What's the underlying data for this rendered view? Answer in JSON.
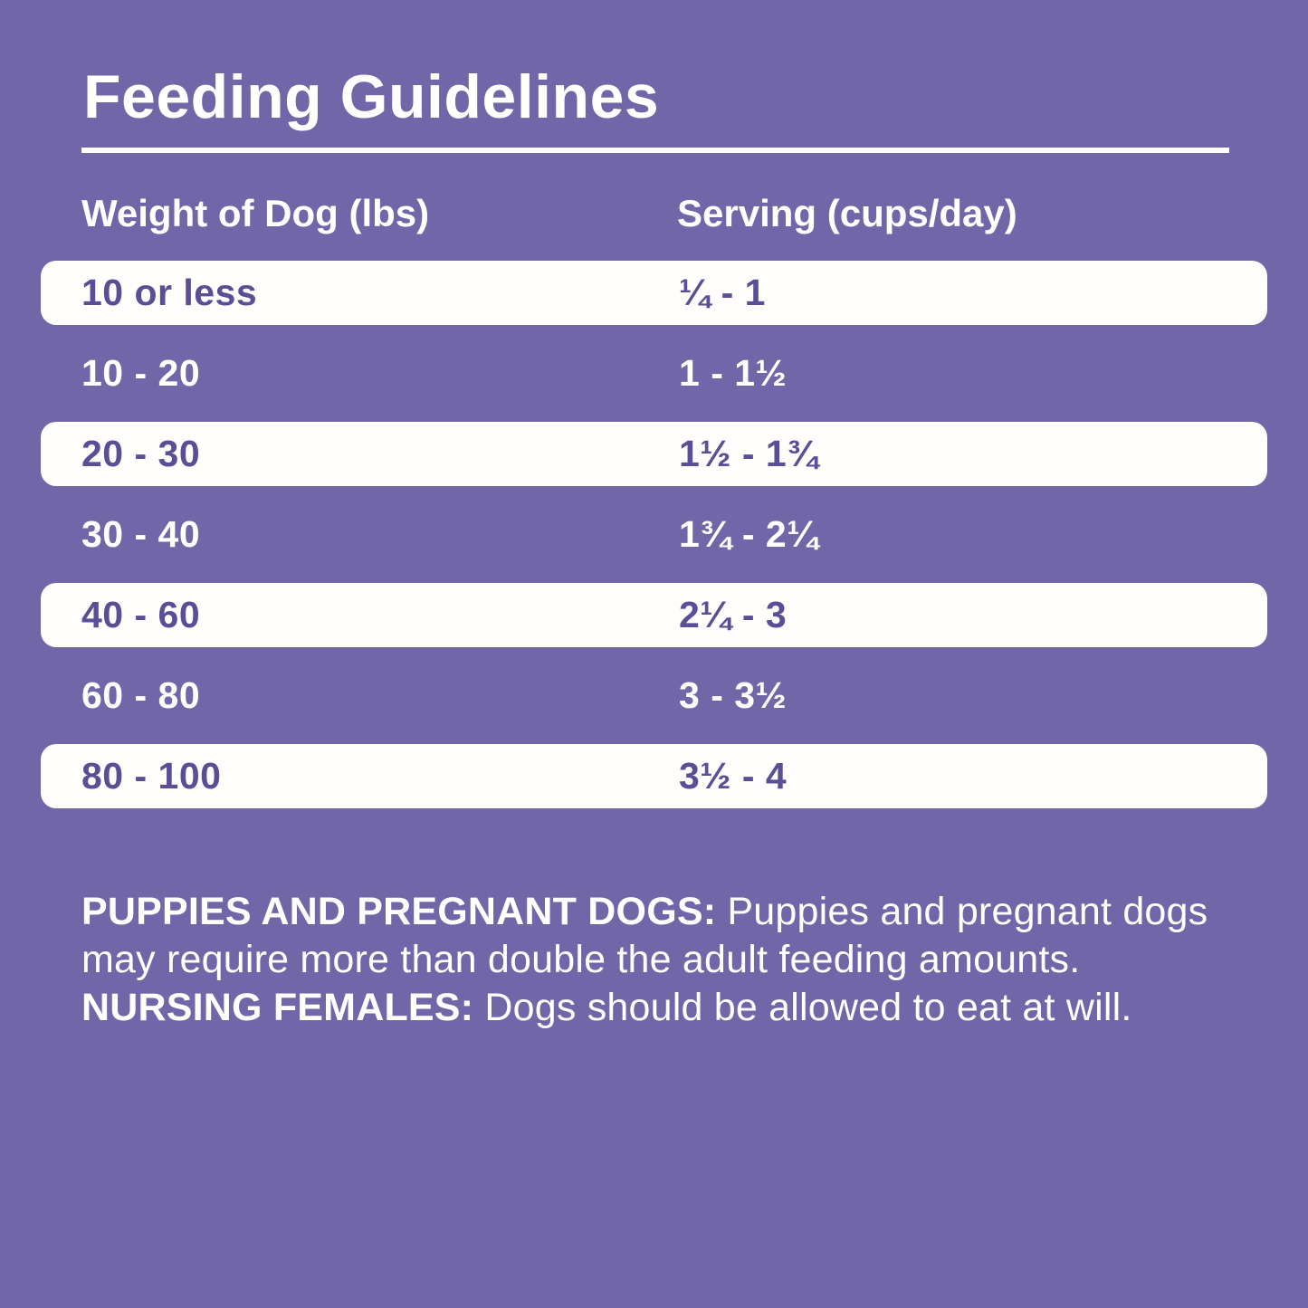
{
  "title": "Feeding Guidelines",
  "table": {
    "columns": {
      "weight": "Weight of Dog (lbs)",
      "serving": "Serving (cups/day)"
    },
    "rows": [
      {
        "weight": "10 or less",
        "serving": "¼ - 1"
      },
      {
        "weight": "10 - 20",
        "serving": "1 - 1½"
      },
      {
        "weight": "20 - 30",
        "serving": "1½ - 1¾"
      },
      {
        "weight": "30 - 40",
        "serving": "1¾ - 2¼"
      },
      {
        "weight": "40 - 60",
        "serving": "2¼ - 3"
      },
      {
        "weight": "60 - 80",
        "serving": "3 - 3½"
      },
      {
        "weight": "80 - 100",
        "serving": "3½ - 4"
      }
    ]
  },
  "notes": {
    "segments": [
      {
        "text": "PUPPIES AND PREGNANT DOGS: ",
        "bold": true
      },
      {
        "text": "Puppies and pregnant dogs may require more than double the adult feeding amounts. ",
        "bold": false
      },
      {
        "text": "NURSING FEMALES: ",
        "bold": true
      },
      {
        "text": "Dogs should be allowed to eat at will.",
        "bold": false
      }
    ]
  },
  "colors": {
    "background": "#7166a8",
    "row_band": "#fffefd",
    "row_text_purple": "#5a4e96",
    "text_white": "#ffffff"
  }
}
